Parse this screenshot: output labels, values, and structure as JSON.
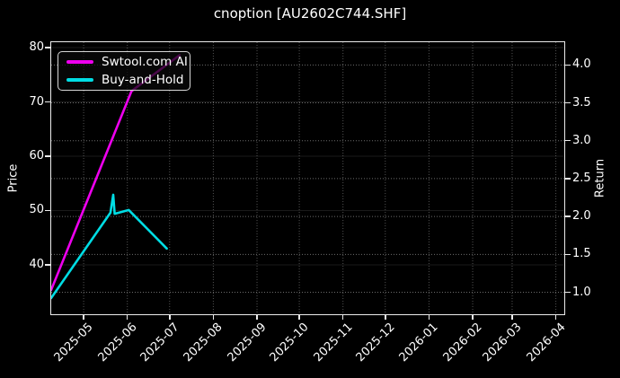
{
  "chart_data": {
    "type": "line",
    "title": "cnoption [AU2602C744.SHF]",
    "background": "#000000",
    "text_color": "#ffffff",
    "x_axis": {
      "range": [
        "2025-04-08",
        "2026-04-07"
      ],
      "ticks": [
        {
          "date": "2025-05-01",
          "label": "2025-05"
        },
        {
          "date": "2025-06-01",
          "label": "2025-06"
        },
        {
          "date": "2025-07-01",
          "label": "2025-07"
        },
        {
          "date": "2025-08-01",
          "label": "2025-08"
        },
        {
          "date": "2025-09-01",
          "label": "2025-09"
        },
        {
          "date": "2025-10-01",
          "label": "2025-10"
        },
        {
          "date": "2025-11-01",
          "label": "2025-11"
        },
        {
          "date": "2025-12-01",
          "label": "2025-12"
        },
        {
          "date": "2026-01-01",
          "label": "2026-01"
        },
        {
          "date": "2026-02-01",
          "label": "2026-02"
        },
        {
          "date": "2026-03-01",
          "label": "2026-03"
        },
        {
          "date": "2026-04-01",
          "label": "2026-04"
        }
      ]
    },
    "left_axis": {
      "label": "Price",
      "range": [
        30.9,
        81.0
      ],
      "ticks": [
        {
          "value": 40,
          "label": "40"
        },
        {
          "value": 50,
          "label": "50"
        },
        {
          "value": 60,
          "label": "60"
        },
        {
          "value": 70,
          "label": "70"
        },
        {
          "value": 80,
          "label": "80"
        }
      ]
    },
    "right_axis": {
      "label": "Return",
      "range": [
        0.71,
        4.3
      ],
      "ticks": [
        {
          "value": 1.0,
          "label": "1.0"
        },
        {
          "value": 1.5,
          "label": "1.5"
        },
        {
          "value": 2.0,
          "label": "2.0"
        },
        {
          "value": 2.5,
          "label": "2.5"
        },
        {
          "value": 3.0,
          "label": "3.0"
        },
        {
          "value": 3.5,
          "label": "3.5"
        },
        {
          "value": 4.0,
          "label": "4.0"
        }
      ]
    },
    "legend": {
      "position": "upper-left"
    },
    "series": [
      {
        "name": "Swtool.com AI",
        "color": "#ee00ee",
        "axis": "left",
        "points": [
          [
            "2025-04-08",
            35.4
          ],
          [
            "2025-06-04",
            72.0
          ],
          [
            "2025-07-08",
            78.6
          ]
        ]
      },
      {
        "name": "Buy-and-Hold",
        "color": "#00dde4",
        "axis": "left",
        "points": [
          [
            "2025-04-08",
            33.9
          ],
          [
            "2025-05-20",
            49.6
          ],
          [
            "2025-05-22",
            52.9
          ],
          [
            "2025-05-23",
            49.4
          ],
          [
            "2025-06-02",
            50.1
          ],
          [
            "2025-06-29",
            43.0
          ]
        ]
      }
    ],
    "grid": {
      "vertical": "dotted gray at each month",
      "horizontal_right": "dotted gray at return ticks",
      "horizontal_left": "faint solid at price ticks"
    }
  }
}
